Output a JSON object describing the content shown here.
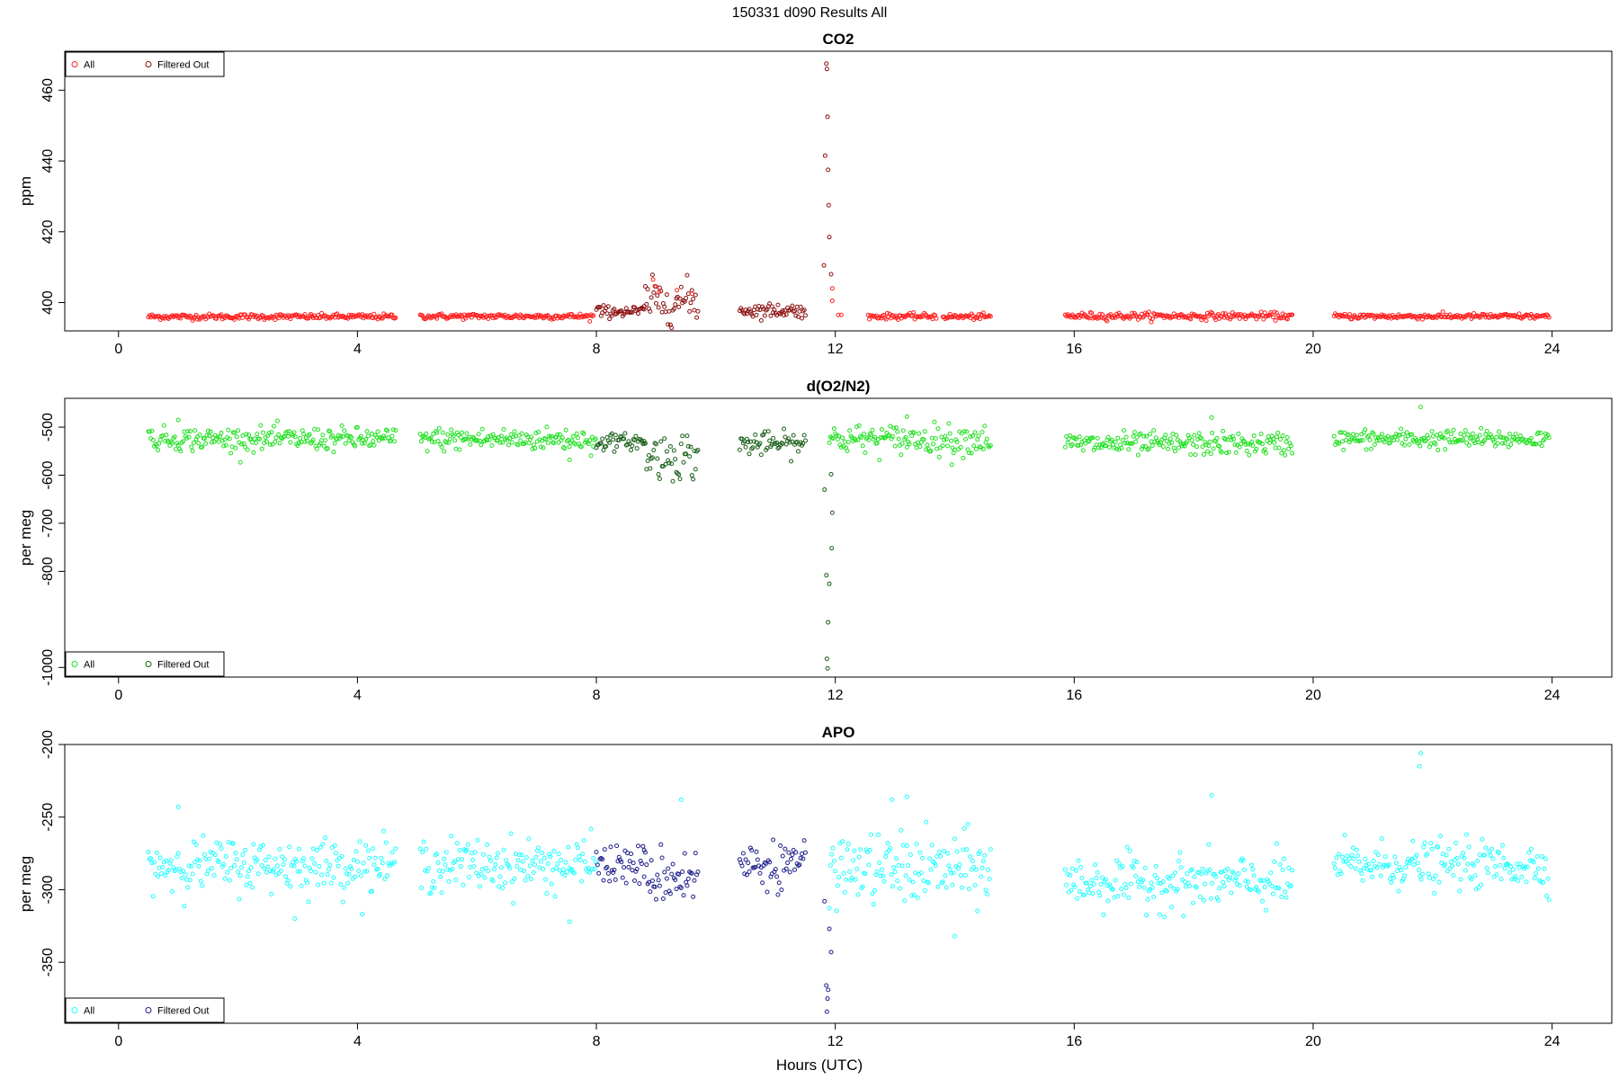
{
  "figure": {
    "title": "150331   d090   Results All",
    "xlabel": "Hours (UTC)"
  },
  "chart_data": [
    {
      "type": "scatter",
      "title": "CO2",
      "ylabel": "ppm",
      "xlim": [
        -0.9,
        25.0
      ],
      "ylim": [
        392,
        471
      ],
      "xticks": [
        0,
        4,
        8,
        12,
        16,
        20,
        24
      ],
      "yticks": [
        400,
        420,
        440,
        460
      ],
      "legend": {
        "position": "top-left",
        "entries": [
          "All",
          "Filtered Out"
        ]
      },
      "colors": {
        "all": "#ff2020",
        "filtered": "#8b1010"
      },
      "segments": [
        {
          "x_start": 0.5,
          "x_end": 4.65,
          "baseline": 396.0,
          "noise": 0.4
        },
        {
          "x_start": 5.05,
          "x_end": 7.95,
          "baseline": 396.1,
          "noise": 0.4
        },
        {
          "x_start": 12.55,
          "x_end": 13.7,
          "baseline": 396.1,
          "noise": 0.4
        },
        {
          "x_start": 13.8,
          "x_end": 14.6,
          "baseline": 396.0,
          "noise": 0.4
        },
        {
          "x_start": 15.85,
          "x_end": 19.65,
          "baseline": 396.2,
          "noise": 0.5
        },
        {
          "x_start": 20.35,
          "x_end": 23.95,
          "baseline": 396.1,
          "noise": 0.4
        }
      ],
      "filtered_segments": [
        {
          "x_start": 8.0,
          "x_end": 8.8,
          "baseline": 397.5,
          "noise": 0.8
        },
        {
          "x_start": 8.8,
          "x_end": 9.7,
          "baseline": 400.5,
          "noise": 3.0
        },
        {
          "x_start": 10.4,
          "x_end": 11.5,
          "baseline": 397.8,
          "noise": 1.0
        }
      ],
      "highlight_points": [
        {
          "x": 8.95,
          "y": 406.5
        },
        {
          "x": 9.0,
          "y": 404.5
        },
        {
          "x": 9.05,
          "y": 403.0
        },
        {
          "x": 9.35,
          "y": 403.5
        },
        {
          "x": 9.6,
          "y": 402.5
        },
        {
          "x": 11.95,
          "y": 400.5
        },
        {
          "x": 11.95,
          "y": 404.0
        },
        {
          "x": 12.05,
          "y": 396.5
        },
        {
          "x": 12.1,
          "y": 396.5
        }
      ],
      "spike_points": [
        {
          "x": 11.85,
          "y": 467.5
        },
        {
          "x": 11.86,
          "y": 466.0
        },
        {
          "x": 11.87,
          "y": 452.5
        },
        {
          "x": 11.83,
          "y": 441.5
        },
        {
          "x": 11.88,
          "y": 437.5
        },
        {
          "x": 11.89,
          "y": 427.5
        },
        {
          "x": 11.9,
          "y": 418.5
        },
        {
          "x": 11.81,
          "y": 410.5
        },
        {
          "x": 11.93,
          "y": 408.0
        }
      ]
    },
    {
      "type": "scatter",
      "title": "d(O2/N2)",
      "ylabel": "per meg",
      "xlim": [
        -0.9,
        25.0
      ],
      "ylim": [
        -1020,
        -440
      ],
      "xticks": [
        0,
        4,
        8,
        12,
        16,
        20,
        24
      ],
      "yticks": [
        -1000,
        -800,
        -700,
        -600,
        -500
      ],
      "ytick_labels": [
        "-1000",
        "-800",
        "-700",
        "-600",
        "-500"
      ],
      "legend": {
        "position": "bottom-left",
        "entries": [
          "All",
          "Filtered Out"
        ]
      },
      "colors": {
        "all": "#20e020",
        "filtered": "#1a5f1a"
      },
      "segments": [
        {
          "x_start": 0.5,
          "x_end": 4.65,
          "baseline": -525,
          "noise": 12
        },
        {
          "x_start": 5.05,
          "x_end": 8.0,
          "baseline": -525,
          "noise": 12
        },
        {
          "x_start": 11.9,
          "x_end": 14.6,
          "baseline": -525,
          "noise": 15
        },
        {
          "x_start": 15.85,
          "x_end": 19.65,
          "baseline": -535,
          "noise": 12
        },
        {
          "x_start": 20.35,
          "x_end": 23.95,
          "baseline": -525,
          "noise": 10
        }
      ],
      "filtered_segments": [
        {
          "x_start": 8.0,
          "x_end": 8.8,
          "baseline": -530,
          "noise": 8
        },
        {
          "x_start": 8.8,
          "x_end": 9.7,
          "baseline": -560,
          "noise": 25
        },
        {
          "x_start": 10.4,
          "x_end": 11.5,
          "baseline": -535,
          "noise": 12
        }
      ],
      "highlight_points": [
        {
          "x": 21.8,
          "y": -458
        },
        {
          "x": 1.0,
          "y": -485
        },
        {
          "x": 13.2,
          "y": -478
        },
        {
          "x": 18.3,
          "y": -480
        },
        {
          "x": 13.95,
          "y": -578
        },
        {
          "x": 7.55,
          "y": -568
        }
      ],
      "spike_points": [
        {
          "x": 11.93,
          "y": -598
        },
        {
          "x": 11.82,
          "y": -630
        },
        {
          "x": 11.95,
          "y": -678
        },
        {
          "x": 11.94,
          "y": -752
        },
        {
          "x": 11.85,
          "y": -808
        },
        {
          "x": 11.9,
          "y": -826
        },
        {
          "x": 11.88,
          "y": -906
        },
        {
          "x": 11.86,
          "y": -982
        },
        {
          "x": 11.87,
          "y": -1002
        }
      ]
    },
    {
      "type": "scatter",
      "title": "APO",
      "ylabel": "per meg",
      "xlim": [
        -0.9,
        25.0
      ],
      "ylim": [
        -392,
        -200
      ],
      "xticks": [
        0,
        4,
        8,
        12,
        16,
        20,
        24
      ],
      "yticks": [
        -350,
        -300,
        -250,
        -200
      ],
      "ytick_labels": [
        "-350",
        "-300",
        "-250",
        "-200"
      ],
      "legend": {
        "position": "bottom-left",
        "entries": [
          "All",
          "Filtered Out"
        ]
      },
      "colors": {
        "all": "#20ffff",
        "filtered": "#20208b"
      },
      "segments": [
        {
          "x_start": 0.5,
          "x_end": 4.65,
          "baseline": -283,
          "noise": 9
        },
        {
          "x_start": 5.05,
          "x_end": 8.0,
          "baseline": -283,
          "noise": 9
        },
        {
          "x_start": 11.9,
          "x_end": 14.6,
          "baseline": -286,
          "noise": 12
        },
        {
          "x_start": 15.85,
          "x_end": 19.65,
          "baseline": -295,
          "noise": 9
        },
        {
          "x_start": 20.35,
          "x_end": 23.95,
          "baseline": -283,
          "noise": 8
        }
      ],
      "filtered_segments": [
        {
          "x_start": 8.0,
          "x_end": 8.8,
          "baseline": -283,
          "noise": 7
        },
        {
          "x_start": 8.8,
          "x_end": 9.7,
          "baseline": -290,
          "noise": 10
        },
        {
          "x_start": 10.4,
          "x_end": 11.5,
          "baseline": -283,
          "noise": 8
        }
      ],
      "highlight_points": [
        {
          "x": 21.8,
          "y": -206
        },
        {
          "x": 21.78,
          "y": -215
        },
        {
          "x": 18.3,
          "y": -235
        },
        {
          "x": 13.2,
          "y": -236
        },
        {
          "x": 12.95,
          "y": -238
        },
        {
          "x": 1.0,
          "y": -243
        },
        {
          "x": 9.42,
          "y": -238
        },
        {
          "x": 14.0,
          "y": -332
        },
        {
          "x": 2.95,
          "y": -320
        },
        {
          "x": 7.55,
          "y": -322
        }
      ],
      "spike_points": [
        {
          "x": 11.82,
          "y": -308
        },
        {
          "x": 11.9,
          "y": -327
        },
        {
          "x": 11.93,
          "y": -343
        },
        {
          "x": 11.85,
          "y": -366
        },
        {
          "x": 11.88,
          "y": -369
        },
        {
          "x": 11.87,
          "y": -375
        },
        {
          "x": 11.86,
          "y": -384
        }
      ]
    }
  ]
}
